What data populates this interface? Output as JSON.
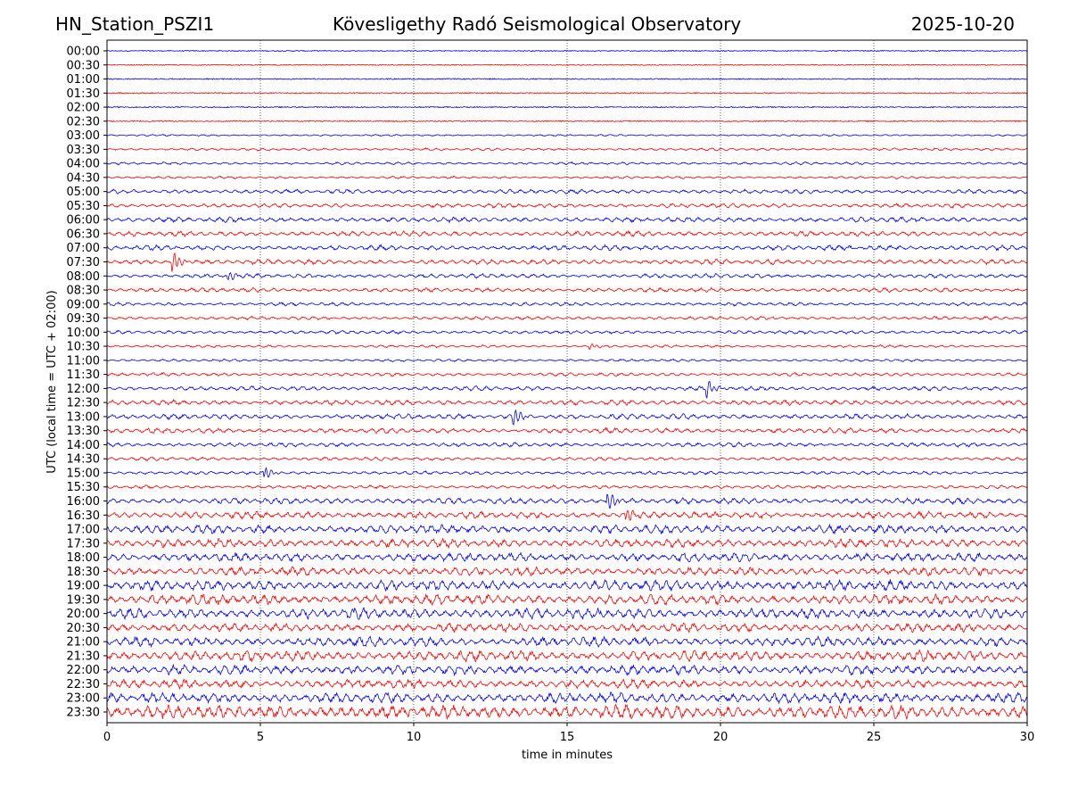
{
  "header": {
    "station": "HN_Station_PSZI1",
    "observatory": "Kövesligethy Radó Seismological Observatory",
    "date": "2025-10-20"
  },
  "chart_data": {
    "type": "line",
    "title": "Kövesligethy Radó Seismological Observatory",
    "xlabel": "time in minutes",
    "ylabel": "UTC (local time = UTC + 02:00)",
    "xlim": [
      0,
      30
    ],
    "x_ticks": [
      "0",
      "5",
      "10",
      "15",
      "20",
      "25",
      "30"
    ],
    "grid": "vertical dotted every 5 minutes",
    "series_colors": [
      "#0000ff",
      "#ff0000"
    ],
    "rows": [
      "00:00",
      "00:30",
      "01:00",
      "01:30",
      "02:00",
      "02:30",
      "03:00",
      "03:30",
      "04:00",
      "04:30",
      "05:00",
      "05:30",
      "06:00",
      "06:30",
      "07:00",
      "07:30",
      "08:00",
      "08:30",
      "09:00",
      "09:30",
      "10:00",
      "10:30",
      "11:00",
      "11:30",
      "12:00",
      "12:30",
      "13:00",
      "13:30",
      "14:00",
      "14:30",
      "15:00",
      "15:30",
      "16:00",
      "16:30",
      "17:00",
      "17:30",
      "18:00",
      "18:30",
      "19:00",
      "19:30",
      "20:00",
      "20:30",
      "21:00",
      "21:30",
      "22:00",
      "22:30",
      "23:00",
      "23:30"
    ],
    "relative_amplitude": [
      0.5,
      0.5,
      0.6,
      0.6,
      0.6,
      0.6,
      1,
      1.5,
      1.5,
      1.5,
      2.5,
      2.5,
      3,
      3,
      3,
      3,
      2.5,
      2.5,
      2,
      2,
      2,
      1.5,
      1.5,
      2,
      2.5,
      3,
      3,
      3,
      2.5,
      2,
      2,
      2,
      3.5,
      4,
      5,
      5,
      5,
      5,
      6,
      6,
      6,
      5,
      5.5,
      6,
      5.5,
      5,
      6,
      8
    ],
    "events": [
      {
        "row": "07:30",
        "minute": 2.2,
        "amp": 10
      },
      {
        "row": "08:00",
        "minute": 4.0,
        "amp": 5
      },
      {
        "row": "10:30",
        "minute": 15.8,
        "amp": 3
      },
      {
        "row": "12:00",
        "minute": 19.6,
        "amp": 9
      },
      {
        "row": "13:00",
        "minute": 13.3,
        "amp": 9
      },
      {
        "row": "15:00",
        "minute": 5.2,
        "amp": 6
      },
      {
        "row": "16:30",
        "minute": 17.0,
        "amp": 6
      },
      {
        "row": "16:00",
        "minute": 16.4,
        "amp": 9
      }
    ]
  }
}
